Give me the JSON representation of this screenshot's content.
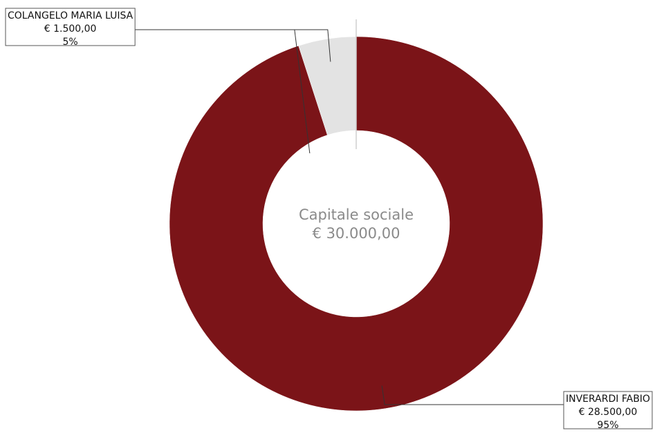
{
  "chart_data": {
    "type": "pie",
    "donut": true,
    "center_title": "Capitale sociale",
    "center_value": "€ 30.000,00",
    "total": 30000,
    "slices": [
      {
        "name": "COLANGELO MARIA LUISA",
        "value": 1500,
        "value_label": "€ 1.500,00",
        "percent": 5,
        "percent_label": "5%",
        "color": "#e3e3e3"
      },
      {
        "name": "INVERARDI FABIO",
        "value": 28500,
        "value_label": "€ 28.500,00",
        "percent": 95,
        "percent_label": "95%",
        "color": "#7b1418"
      }
    ]
  }
}
